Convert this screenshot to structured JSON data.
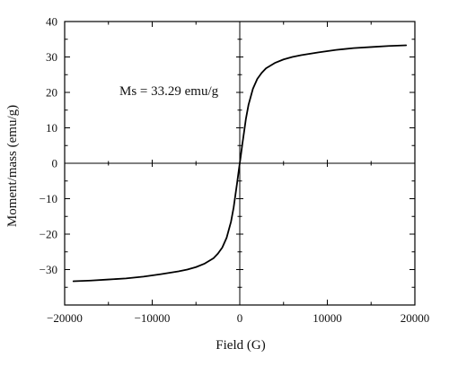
{
  "chart_data": {
    "type": "line",
    "title": "",
    "xlabel": "Field (G)",
    "ylabel": "Moment/mass (emu/g)",
    "xlim": [
      -20000,
      20000
    ],
    "ylim": [
      -40,
      40
    ],
    "x_ticks": [
      -20000,
      -10000,
      0,
      10000,
      20000
    ],
    "y_ticks": [
      -30,
      -20,
      -10,
      0,
      10,
      20,
      30,
      40
    ],
    "x_tick_labels": [
      "−20000",
      "−10000",
      "0",
      "10000",
      "20000"
    ],
    "y_tick_labels": [
      "−30",
      "−20",
      "−10",
      "0",
      "10",
      "20",
      "30",
      "40"
    ],
    "annotation": "Ms = 33.29 emu/g",
    "grid": false,
    "legend": "none",
    "line_color": "#000000",
    "series": [
      {
        "x": [
          -19000,
          -17000,
          -15000,
          -13000,
          -11000,
          -9000,
          -7000,
          -6000,
          -5000,
          -4000,
          -3000,
          -2500,
          -2000,
          -1500,
          -1000,
          -700,
          -500,
          -300,
          -150,
          0,
          150,
          300,
          500,
          700,
          1000,
          1500,
          2000,
          2500,
          3000,
          4000,
          5000,
          6000,
          7000,
          9000,
          11000,
          13000,
          15000,
          17000,
          19000
        ],
        "y": [
          -33.3,
          -33.1,
          -32.8,
          -32.5,
          -32.0,
          -31.3,
          -30.5,
          -30.0,
          -29.3,
          -28.3,
          -26.8,
          -25.5,
          -23.8,
          -21.0,
          -16.5,
          -12.5,
          -9.0,
          -5.5,
          -2.7,
          0.0,
          2.7,
          5.5,
          9.0,
          12.5,
          16.5,
          21.0,
          23.8,
          25.5,
          26.8,
          28.3,
          29.3,
          30.0,
          30.5,
          31.3,
          32.0,
          32.5,
          32.8,
          33.1,
          33.29
        ]
      }
    ]
  }
}
